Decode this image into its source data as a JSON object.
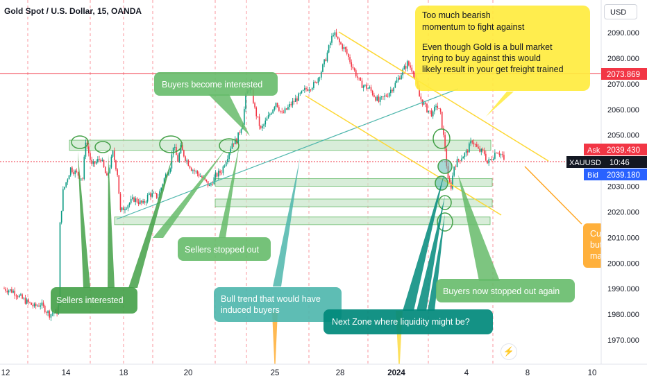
{
  "header": {
    "symbol_title": "Gold Spot / U.S. Dollar, 15, OANDA",
    "currency_button": "USD"
  },
  "chart_data": {
    "type": "candlestick",
    "title": "Gold Spot / U.S. Dollar, 15, OANDA",
    "y_axis": {
      "ylim": [
        1962,
        2100
      ],
      "ticks": [
        "2090.000",
        "2080.000",
        "2070.000",
        "2060.000",
        "2050.000",
        "2040.000",
        "2030.000",
        "2020.000",
        "2010.000",
        "2000.000",
        "1990.000",
        "1980.000",
        "1970.000"
      ],
      "tick_values": [
        2090,
        2080,
        2070,
        2060,
        2050,
        2040,
        2030,
        2020,
        2010,
        2000,
        1990,
        1980,
        1970
      ]
    },
    "x_axis": {
      "ticks": [
        "12",
        "14",
        "18",
        "20",
        "25",
        "28",
        "2024",
        "4",
        "8",
        "10"
      ]
    },
    "price_path": [
      [
        0,
        1990
      ],
      [
        0.3,
        1989
      ],
      [
        0.6,
        1986
      ],
      [
        1.0,
        1983
      ],
      [
        1.2,
        1984
      ],
      [
        1.5,
        1980
      ],
      [
        1.75,
        1981
      ],
      [
        1.8,
        1983
      ],
      [
        1.85,
        2015
      ],
      [
        1.95,
        2028
      ],
      [
        2.2,
        2037
      ],
      [
        2.6,
        2033
      ],
      [
        2.7,
        2048
      ],
      [
        2.9,
        2038
      ],
      [
        3.2,
        2041
      ],
      [
        3.4,
        2033
      ],
      [
        3.6,
        2043
      ],
      [
        3.75,
        2035
      ],
      [
        3.85,
        2020
      ],
      [
        4.0,
        2022
      ],
      [
        4.3,
        2025
      ],
      [
        4.6,
        2023
      ],
      [
        4.8,
        2027
      ],
      [
        5.1,
        2026
      ],
      [
        5.3,
        2033
      ],
      [
        5.5,
        2038
      ],
      [
        5.6,
        2046
      ],
      [
        5.75,
        2040
      ],
      [
        5.85,
        2045
      ],
      [
        6.0,
        2041
      ],
      [
        6.2,
        2037
      ],
      [
        6.5,
        2034
      ],
      [
        6.8,
        2030
      ],
      [
        7.0,
        2034
      ],
      [
        7.2,
        2036
      ],
      [
        7.4,
        2042
      ],
      [
        7.55,
        2047
      ],
      [
        7.7,
        2048
      ],
      [
        7.9,
        2055
      ],
      [
        8.0,
        2065
      ],
      [
        8.15,
        2070
      ],
      [
        8.3,
        2060
      ],
      [
        8.5,
        2052
      ],
      [
        8.75,
        2057
      ],
      [
        9.0,
        2063
      ],
      [
        9.2,
        2058
      ],
      [
        9.5,
        2062
      ],
      [
        9.75,
        2065
      ],
      [
        10.0,
        2068
      ],
      [
        10.3,
        2070
      ],
      [
        10.5,
        2075
      ],
      [
        10.65,
        2080
      ],
      [
        10.9,
        2090
      ],
      [
        11.1,
        2086
      ],
      [
        11.3,
        2083
      ],
      [
        11.6,
        2075
      ],
      [
        11.8,
        2070
      ],
      [
        12.1,
        2068
      ],
      [
        12.4,
        2063
      ],
      [
        12.7,
        2066
      ],
      [
        12.95,
        2070
      ],
      [
        13.2,
        2075
      ],
      [
        13.35,
        2078
      ],
      [
        13.55,
        2075
      ],
      [
        13.75,
        2065
      ],
      [
        14.0,
        2060
      ],
      [
        14.2,
        2058
      ],
      [
        14.3,
        2062
      ],
      [
        14.45,
        2058
      ],
      [
        14.6,
        2045
      ],
      [
        14.7,
        2032
      ],
      [
        14.8,
        2030
      ],
      [
        14.9,
        2038
      ],
      [
        15.1,
        2041
      ],
      [
        15.3,
        2043
      ],
      [
        15.5,
        2048
      ],
      [
        15.7,
        2044
      ],
      [
        15.9,
        2043
      ],
      [
        16.0,
        2039
      ],
      [
        16.15,
        2041
      ],
      [
        16.3,
        2044
      ],
      [
        16.5,
        2042
      ],
      [
        16.6,
        2037
      ]
    ],
    "zones": [
      {
        "low": 2044,
        "high": 2048
      },
      {
        "low": 2030,
        "high": 2033
      },
      {
        "low": 2022,
        "high": 2025
      },
      {
        "low": 2015,
        "high": 2018
      }
    ],
    "resistance_line": 2073.869,
    "current_price": 2039.43,
    "price_labels": {
      "resistance": "2073.869",
      "ask_label": "Ask",
      "ask_value": "2039.430",
      "symbol": "XAUUSD",
      "countdown": "10:46",
      "bid_label": "Bid",
      "bid_value": "2039.180"
    },
    "annotations": {
      "too_much_bearish_line1": "Too much bearish",
      "too_much_bearish_line2": "momentum to fight against",
      "even_though_line1": "Even though Gold is a bull market",
      "even_though_line2": "trying to buy against this would",
      "even_though_line3": "likely result in your get freight trained",
      "buyers_interested": "Buyers become interested",
      "sellers_stopped": "Sellers stopped out",
      "sellers_interested": "Sellers interested",
      "bull_trend_line1": "Bull trend that would have",
      "bull_trend_line2": "induced buyers",
      "next_zone": "Next Zone where liquidity might be?",
      "buyers_stopped_again": "Buyers now stopped out again",
      "cut_off_line1": "Cur",
      "cut_off_line2": "but",
      "cut_off_line3": "ma"
    },
    "colors": {
      "zone_fill": "#c8e6c9",
      "zone_stroke": "#66bb6a",
      "annotation_green": "#66bb6a",
      "annotation_dark_green": "#43a047",
      "annotation_teal": "#4db6ac",
      "annotation_dark_teal": "#00897b",
      "annotation_yellow": "#ffeb3b",
      "annotation_orange": "#ffa726",
      "resistance_red": "#f23645",
      "ask_red": "#f23645",
      "bid_blue": "#2962ff",
      "candle_up": "#089981",
      "candle_down": "#f23645"
    }
  }
}
